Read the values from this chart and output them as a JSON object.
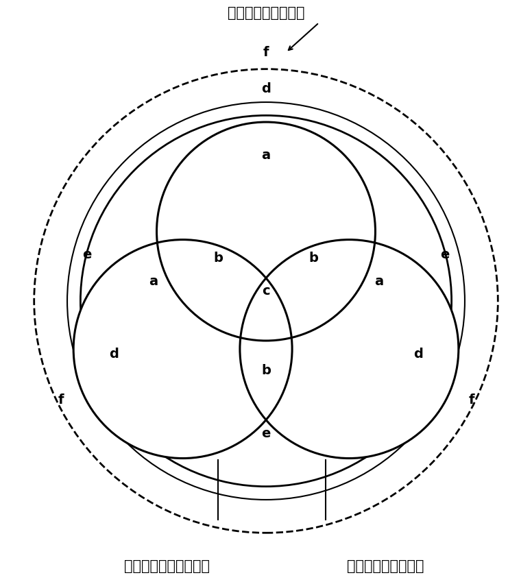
{
  "title_top": "＜物関係領域活動＞",
  "label_bottom_left": "＜自己関係領域活動＞",
  "label_bottom_right": "＜人関係領域活動＞",
  "labels": [
    "a",
    "b",
    "c",
    "d",
    "e",
    "f"
  ],
  "bg_color": "#ffffff",
  "line_color": "#000000",
  "hatch_color": "#000000"
}
